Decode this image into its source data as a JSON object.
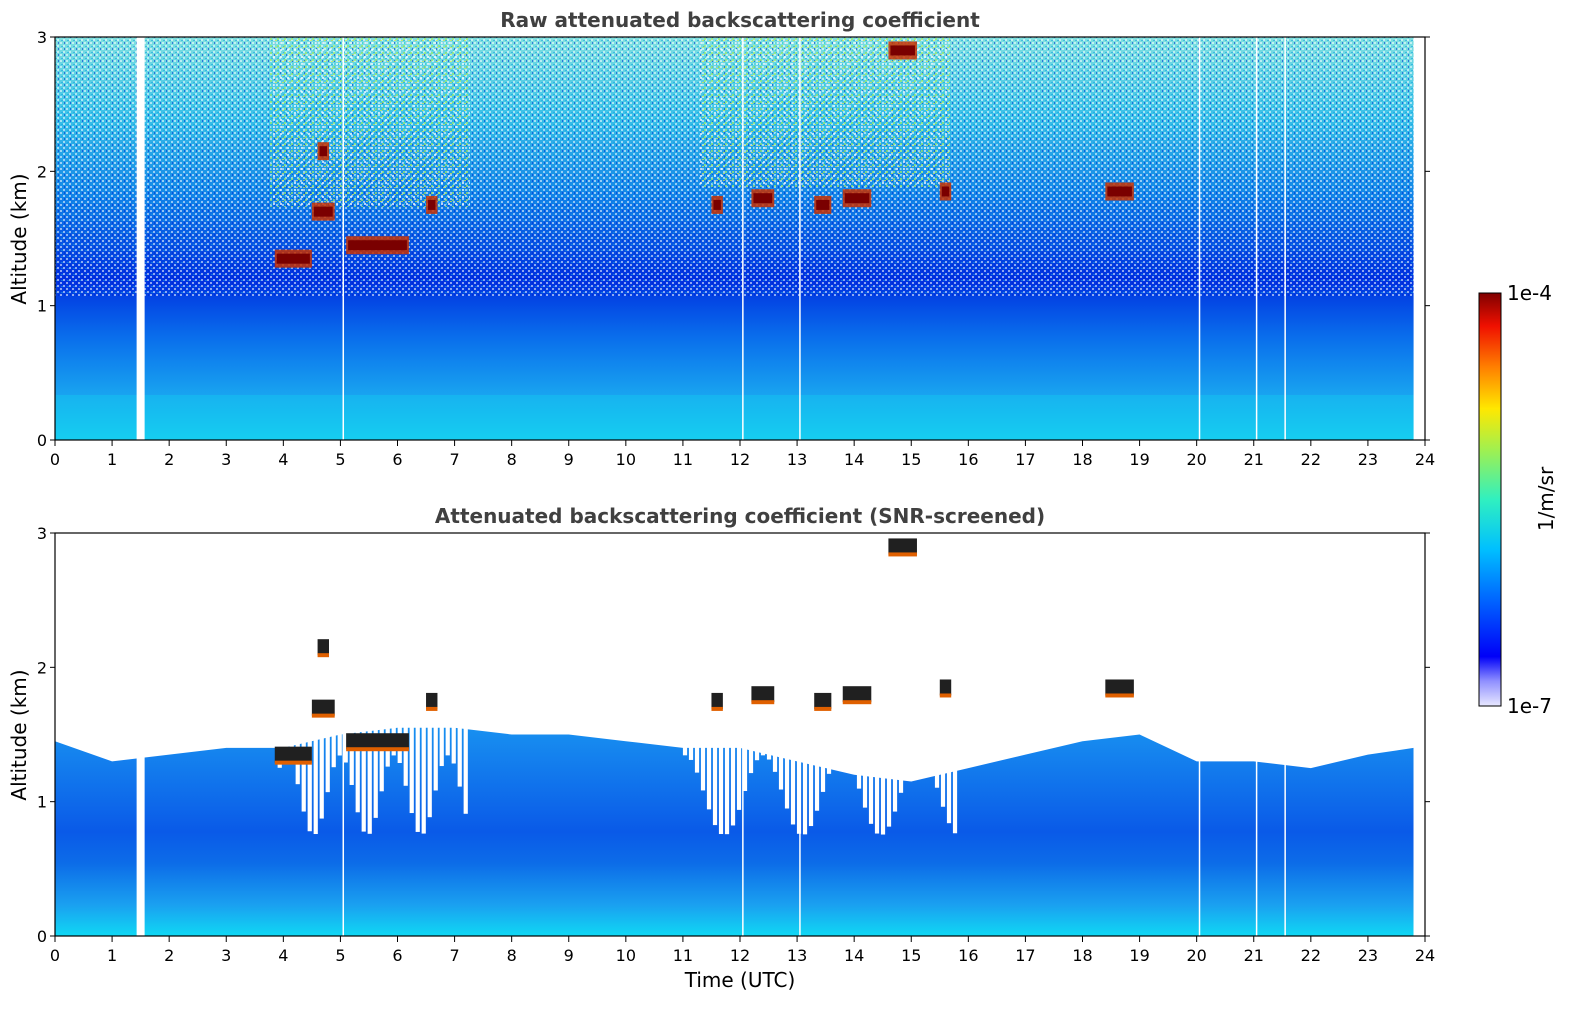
{
  "chart_data": [
    {
      "type": "heatmap",
      "title": "Raw attenuated backscattering coefficient",
      "xlabel": "",
      "ylabel": "Altitude (km)",
      "xlim": [
        0,
        24
      ],
      "ylim": [
        0,
        3
      ],
      "xticks": [
        "0",
        "1",
        "2",
        "3",
        "4",
        "5",
        "6",
        "7",
        "8",
        "9",
        "10",
        "11",
        "12",
        "13",
        "14",
        "15",
        "16",
        "17",
        "18",
        "19",
        "20",
        "21",
        "22",
        "23",
        "24"
      ],
      "yticks": [
        "0",
        "1",
        "2",
        "3"
      ],
      "data_gaps_utc": [
        1.5,
        5.05,
        12.05,
        13.05,
        20.05,
        21.05,
        21.55
      ],
      "data_end_utc": 23.8,
      "cloud_layers": [
        {
          "t_start": 3.85,
          "t_end": 4.5,
          "alt_km": 1.35
        },
        {
          "t_start": 4.5,
          "t_end": 4.9,
          "alt_km": 1.7
        },
        {
          "t_start": 4.6,
          "t_end": 4.8,
          "alt_km": 2.15
        },
        {
          "t_start": 5.1,
          "t_end": 6.2,
          "alt_km": 1.45
        },
        {
          "t_start": 6.5,
          "t_end": 6.7,
          "alt_km": 1.75
        },
        {
          "t_start": 11.5,
          "t_end": 11.7,
          "alt_km": 1.75
        },
        {
          "t_start": 12.2,
          "t_end": 12.6,
          "alt_km": 1.8
        },
        {
          "t_start": 13.3,
          "t_end": 13.6,
          "alt_km": 1.75
        },
        {
          "t_start": 13.8,
          "t_end": 14.3,
          "alt_km": 1.8
        },
        {
          "t_start": 14.6,
          "t_end": 15.1,
          "alt_km": 2.9
        },
        {
          "t_start": 15.5,
          "t_end": 15.7,
          "alt_km": 1.85
        },
        {
          "t_start": 18.4,
          "t_end": 18.9,
          "alt_km": 1.85
        }
      ]
    },
    {
      "type": "heatmap",
      "title": "Attenuated backscattering coefficient (SNR-screened)",
      "xlabel": "Time (UTC)",
      "ylabel": "Altitude (km)",
      "xlim": [
        0,
        24
      ],
      "ylim": [
        0,
        3
      ],
      "xticks": [
        "0",
        "1",
        "2",
        "3",
        "4",
        "5",
        "6",
        "7",
        "8",
        "9",
        "10",
        "11",
        "12",
        "13",
        "14",
        "15",
        "16",
        "17",
        "18",
        "19",
        "20",
        "21",
        "22",
        "23",
        "24"
      ],
      "yticks": [
        "0",
        "1",
        "2",
        "3"
      ],
      "boundary_layer_top_km": [
        [
          0,
          1.45
        ],
        [
          1,
          1.3
        ],
        [
          2,
          1.35
        ],
        [
          3,
          1.4
        ],
        [
          4,
          1.4
        ],
        [
          5,
          1.5
        ],
        [
          6,
          1.55
        ],
        [
          7,
          1.55
        ],
        [
          8,
          1.5
        ],
        [
          9,
          1.5
        ],
        [
          10,
          1.45
        ],
        [
          11,
          1.4
        ],
        [
          12,
          1.4
        ],
        [
          13,
          1.3
        ],
        [
          14,
          1.2
        ],
        [
          15,
          1.15
        ],
        [
          16,
          1.25
        ],
        [
          17,
          1.35
        ],
        [
          18,
          1.45
        ],
        [
          19,
          1.5
        ],
        [
          20,
          1.3
        ],
        [
          21,
          1.3
        ],
        [
          22,
          1.25
        ],
        [
          23,
          1.35
        ],
        [
          23.8,
          1.4
        ]
      ],
      "screened_gap_utc": [
        [
          3.9,
          7.2
        ],
        [
          11.0,
          15.8
        ]
      ]
    }
  ],
  "colorbar": {
    "label": "1/m/sr",
    "max_label": "1e-4",
    "min_label": "1e-7",
    "scale": "log",
    "colormap": "jet"
  }
}
